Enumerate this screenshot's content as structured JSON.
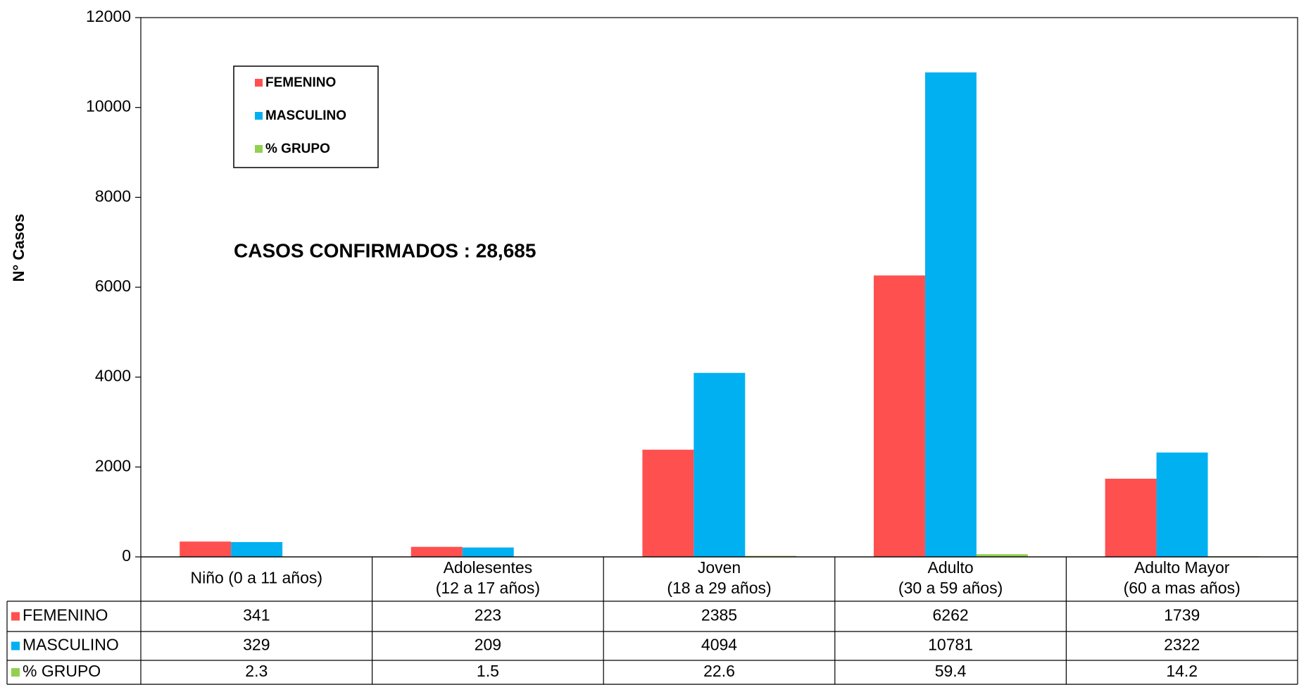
{
  "chart_data": {
    "type": "bar",
    "ylabel": "N° Casos",
    "annotation": "CASOS CONFIRMADOS : 28,685",
    "categories": [
      [
        "Niño (0 a 11 años)"
      ],
      [
        "Adolesentes",
        "(12 a 17 años)"
      ],
      [
        "Joven",
        "(18 a 29 años)"
      ],
      [
        "Adulto",
        "(30 a 59 años)"
      ],
      [
        "Adulto Mayor",
        "(60 a mas años)"
      ]
    ],
    "series": [
      {
        "name": "FEMENINO",
        "color": "#ff5050",
        "values": [
          341,
          223,
          2385,
          6262,
          1739
        ]
      },
      {
        "name": "MASCULINO",
        "color": "#00b0f0",
        "values": [
          329,
          209,
          4094,
          10781,
          2322
        ]
      },
      {
        "name": "% GRUPO",
        "color": "#92d050",
        "values": [
          2.3,
          1.5,
          22.6,
          59.4,
          14.2
        ]
      }
    ],
    "ylim": [
      0,
      12000
    ],
    "yticks": [
      0,
      2000,
      4000,
      6000,
      8000,
      10000,
      12000
    ],
    "grid": false,
    "legend": "upper left",
    "data_table": true
  }
}
